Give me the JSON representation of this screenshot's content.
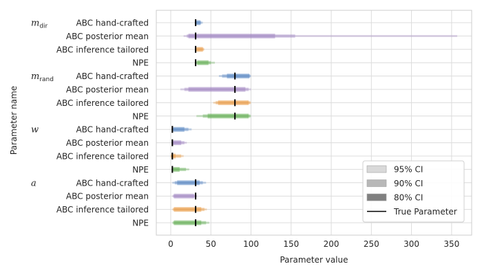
{
  "chart_data": {
    "type": "interval",
    "xlabel": "Parameter value",
    "ylabel": "Parameter name",
    "xlim": [
      -18,
      375
    ],
    "xticks": [
      0,
      50,
      100,
      150,
      200,
      250,
      300,
      350
    ],
    "grid": true,
    "legend": {
      "placement": "lower-right",
      "entries": [
        {
          "label": "95% CI",
          "swatch": "#d9d9d9"
        },
        {
          "label": "90% CI",
          "swatch": "#b8b8b8"
        },
        {
          "label": "80% CI",
          "swatch": "#808080"
        },
        {
          "label": "True Parameter",
          "swatch": "line"
        }
      ]
    },
    "method_colors": {
      "ABC hand-crafted": "#4c7fbf",
      "ABC posterior mean": "#9b7fbf",
      "ABC inference tailored": "#e8943a",
      "NPE": "#5aaa4a"
    },
    "groups": [
      {
        "name": "m",
        "subscript": "dir",
        "rows": [
          {
            "method": "ABC hand-crafted",
            "ci95": [
              30,
              40
            ],
            "ci90": [
              30,
              38
            ],
            "ci80": [
              31,
              37
            ],
            "true": 31
          },
          {
            "method": "ABC posterior mean",
            "ci95": [
              16,
              357
            ],
            "ci90": [
              20,
              155
            ],
            "ci80": [
              22,
              130
            ],
            "true": 31
          },
          {
            "method": "ABC inference tailored",
            "ci95": [
              30,
              42
            ],
            "ci90": [
              31,
              41
            ],
            "ci80": [
              32,
              40
            ],
            "true": 31
          },
          {
            "method": "NPE",
            "ci95": [
              30,
              55
            ],
            "ci90": [
              31,
              50
            ],
            "ci80": [
              33,
              47
            ],
            "true": 31
          }
        ]
      },
      {
        "name": "m",
        "subscript": "rand",
        "rows": [
          {
            "method": "ABC hand-crafted",
            "ci95": [
              60,
              100
            ],
            "ci90": [
              64,
              99
            ],
            "ci80": [
              70,
              98
            ],
            "true": 80
          },
          {
            "method": "ABC posterior mean",
            "ci95": [
              12,
              100
            ],
            "ci90": [
              17,
              97
            ],
            "ci80": [
              22,
              93
            ],
            "true": 80
          },
          {
            "method": "ABC inference tailored",
            "ci95": [
              53,
              100
            ],
            "ci90": [
              56,
              99
            ],
            "ci80": [
              59,
              97
            ],
            "true": 80
          },
          {
            "method": "NPE",
            "ci95": [
              32,
              100
            ],
            "ci90": [
              40,
              99
            ],
            "ci80": [
              46,
              97
            ],
            "true": 80
          }
        ]
      },
      {
        "name": "w",
        "subscript": "",
        "rows": [
          {
            "method": "ABC hand-crafted",
            "ci95": [
              1,
              26
            ],
            "ci90": [
              2,
              22
            ],
            "ci80": [
              3,
              17
            ],
            "true": 2
          },
          {
            "method": "ABC posterior mean",
            "ci95": [
              1,
              20
            ],
            "ci90": [
              1,
              17
            ],
            "ci80": [
              2,
              13
            ],
            "true": 2
          },
          {
            "method": "ABC inference tailored",
            "ci95": [
              0,
              16
            ],
            "ci90": [
              0,
              13
            ],
            "ci80": [
              1,
              6
            ],
            "true": 2
          },
          {
            "method": "NPE",
            "ci95": [
              1,
              23
            ],
            "ci90": [
              2,
              19
            ],
            "ci80": [
              3,
              11
            ],
            "true": 2
          }
        ]
      },
      {
        "name": "a",
        "subscript": "",
        "rows": [
          {
            "method": "ABC hand-crafted",
            "ci95": [
              2,
              44
            ],
            "ci90": [
              5,
              40
            ],
            "ci80": [
              8,
              36
            ],
            "true": 31
          },
          {
            "method": "ABC posterior mean",
            "ci95": [
              2,
              33
            ],
            "ci90": [
              3,
              31
            ],
            "ci80": [
              4,
              29
            ],
            "true": 31
          },
          {
            "method": "ABC inference tailored",
            "ci95": [
              2,
              45
            ],
            "ci90": [
              3,
              42
            ],
            "ci80": [
              4,
              38
            ],
            "true": 31
          },
          {
            "method": "NPE",
            "ci95": [
              2,
              48
            ],
            "ci90": [
              3,
              44
            ],
            "ci80": [
              4,
              38
            ],
            "true": 31
          }
        ]
      }
    ]
  }
}
